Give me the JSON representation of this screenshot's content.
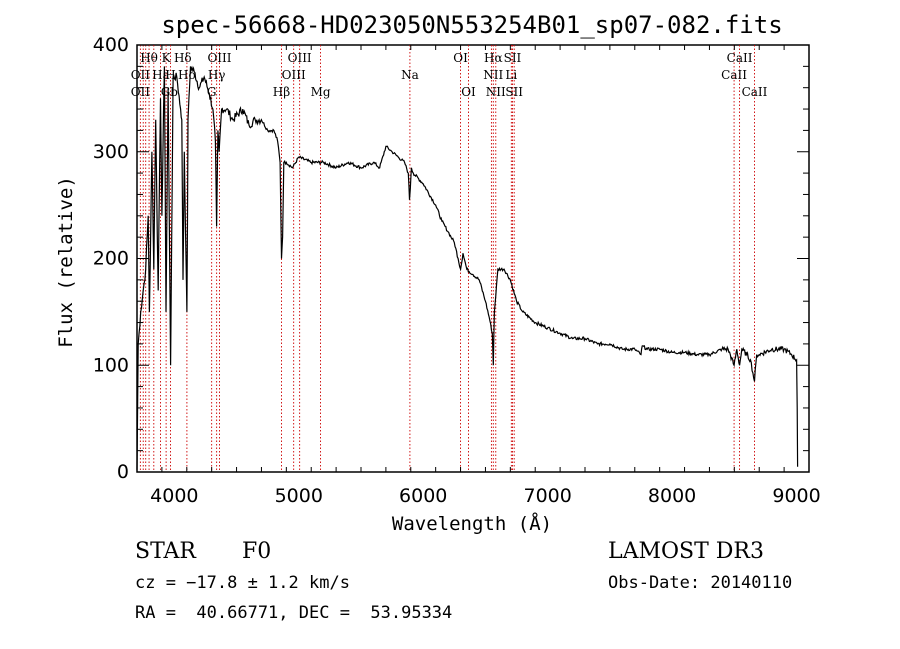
{
  "chart_data": {
    "type": "line",
    "title": "spec-56668-HD023050N553254B01_sp07-082.fits",
    "xlabel": "Wavelength (Å)",
    "ylabel": "Flux (relative)",
    "xlim": [
      3700,
      9100
    ],
    "ylim": [
      0,
      400
    ],
    "xticks": [
      4000,
      5000,
      6000,
      7000,
      8000,
      9000
    ],
    "yticks": [
      0,
      100,
      200,
      300,
      400
    ],
    "series": [
      {
        "name": "flux",
        "x": [
          3700,
          3710,
          3730,
          3750,
          3770,
          3790,
          3800,
          3820,
          3835,
          3850,
          3870,
          3889,
          3900,
          3920,
          3933,
          3950,
          3970,
          3990,
          4020,
          4050,
          4060,
          4070,
          4080,
          4101,
          4110,
          4130,
          4160,
          4200,
          4240,
          4280,
          4310,
          4330,
          4340,
          4350,
          4360,
          4380,
          4420,
          4470,
          4550,
          4600,
          4650,
          4700,
          4750,
          4800,
          4830,
          4850,
          4861,
          4870,
          4880,
          4900,
          4950,
          5000,
          5100,
          5200,
          5300,
          5400,
          5500,
          5600,
          5650,
          5700,
          5750,
          5800,
          5850,
          5880,
          5890,
          5896,
          5905,
          5920,
          6000,
          6100,
          6150,
          6200,
          6250,
          6280,
          6300,
          6320,
          6350,
          6400,
          6450,
          6500,
          6530,
          6555,
          6563,
          6572,
          6600,
          6650,
          6700,
          6750,
          6800,
          6900,
          7000,
          7100,
          7200,
          7300,
          7400,
          7500,
          7600,
          7700,
          7750,
          7760,
          7800,
          7900,
          8000,
          8100,
          8200,
          8300,
          8400,
          8450,
          8498,
          8520,
          8542,
          8560,
          8600,
          8630,
          8662,
          8680,
          8700,
          8800,
          8900,
          8960,
          9000,
          9005,
          9008
        ],
        "y": [
          2,
          120,
          150,
          170,
          190,
          240,
          150,
          300,
          190,
          330,
          170,
          350,
          240,
          380,
          150,
          360,
          100,
          370,
          370,
          340,
          330,
          180,
          300,
          150,
          330,
          380,
          375,
          360,
          370,
          355,
          340,
          310,
          230,
          320,
          300,
          340,
          340,
          330,
          340,
          325,
          330,
          330,
          320,
          320,
          310,
          290,
          200,
          220,
          290,
          290,
          285,
          295,
          290,
          290,
          285,
          290,
          285,
          290,
          285,
          305,
          300,
          295,
          290,
          280,
          255,
          265,
          285,
          280,
          270,
          250,
          235,
          225,
          215,
          200,
          190,
          205,
          190,
          185,
          180,
          160,
          145,
          130,
          100,
          150,
          190,
          190,
          180,
          160,
          150,
          140,
          135,
          130,
          125,
          125,
          120,
          120,
          115,
          115,
          110,
          118,
          115,
          115,
          112,
          112,
          110,
          110,
          115,
          115,
          100,
          115,
          100,
          115,
          110,
          105,
          85,
          110,
          110,
          115,
          115,
          110,
          105,
          60,
          5
        ]
      }
    ],
    "line_markers": [
      {
        "label": "Hδ",
        "wl": 4101
      },
      {
        "label": "Hγ",
        "wl": 4340
      },
      {
        "label": "Hβ",
        "wl": 4861
      },
      {
        "label": "Na",
        "wl": 5893
      },
      {
        "label": "Hα",
        "wl": 6563
      },
      {
        "label": "Mg",
        "wl": 5175
      },
      {
        "label": "K",
        "wl": 3934
      },
      {
        "label": "H",
        "wl": 3969
      },
      {
        "label": "CaII",
        "wl": 8542
      },
      {
        "label": "OIII",
        "wl": 4959
      }
    ],
    "top_labels": [
      {
        "label": "Hθ",
        "wl": 3797
      },
      {
        "label": "OII",
        "wl": 3727
      },
      {
        "label": "OII",
        "wl": 3727
      },
      {
        "label": "K",
        "wl": 3934
      },
      {
        "label": "Hε",
        "wl": 3889
      },
      {
        "label": "H",
        "wl": 3969
      },
      {
        "label": "Hd",
        "wl": 4020
      },
      {
        "label": "Hδ",
        "wl": 4101
      },
      {
        "label": "Gb",
        "wl": 3960
      },
      {
        "label": "OIII",
        "wl": 4363
      },
      {
        "label": "Hγ",
        "wl": 4340
      },
      {
        "label": "G",
        "wl": 4300
      },
      {
        "label": "OIII",
        "wl": 4959
      },
      {
        "label": "OIII",
        "wl": 5007
      },
      {
        "label": "Hβ",
        "wl": 4861
      },
      {
        "label": "Mg",
        "wl": 5175
      },
      {
        "label": "Na",
        "wl": 5893
      },
      {
        "label": "OI",
        "wl": 6300
      },
      {
        "label": "OI",
        "wl": 6364
      },
      {
        "label": "Hα",
        "wl": 6563
      },
      {
        "label": "NII",
        "wl": 6548
      },
      {
        "label": "NII",
        "wl": 6583
      },
      {
        "label": "SII",
        "wl": 6717
      },
      {
        "label": "SII",
        "wl": 6731
      },
      {
        "label": "Li",
        "wl": 6708
      },
      {
        "label": "CaII",
        "wl": 8498
      },
      {
        "label": "CaII",
        "wl": 8542
      },
      {
        "label": "CaII",
        "wl": 8662
      }
    ],
    "marker_lines_wl": [
      3727,
      3750,
      3770,
      3797,
      3835,
      3889,
      3934,
      3969,
      4101,
      4300,
      4340,
      4363,
      4861,
      4959,
      5007,
      5175,
      5893,
      6300,
      6364,
      6548,
      6563,
      6583,
      6708,
      6717,
      6731,
      8498,
      8542,
      8662
    ]
  },
  "footer": {
    "object_class": "STAR",
    "subclass": "F0",
    "cz": "cz = −17.8 ± 1.2 km/s",
    "coords": "RA =  40.66771, DEC =  53.95334",
    "survey": "LAMOST DR3",
    "obs_date": "Obs-Date: 20140110"
  },
  "colors": {
    "marker": "#cc0000",
    "line": "#000000",
    "background": "#ffffff"
  }
}
